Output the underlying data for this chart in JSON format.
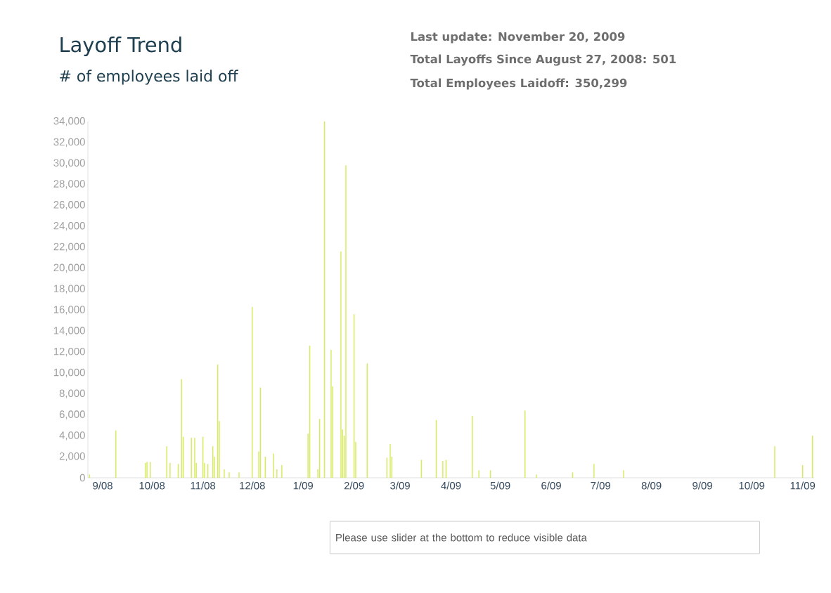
{
  "chart_data": {
    "type": "bar",
    "title": "Layoff Trend",
    "subtitle": "# of employees laid off",
    "annotations": [
      "Last update: November 20, 2009",
      "Total Layoffs Since August 27, 2008: 501",
      "Total Employees Laidoff: 350,299",
      "Please use slider at the bottom to reduce visible data"
    ],
    "x": [
      "2008-08-24",
      "2008-09-09",
      "2008-09-27",
      "2008-09-28",
      "2008-09-30",
      "2008-10-10",
      "2008-10-12",
      "2008-10-17",
      "2008-10-19",
      "2008-10-20",
      "2008-10-25",
      "2008-10-27",
      "2008-10-28",
      "2008-11-01",
      "2008-11-02",
      "2008-11-04",
      "2008-11-07",
      "2008-11-08",
      "2008-11-10",
      "2008-11-11",
      "2008-11-14",
      "2008-11-17",
      "2008-11-23",
      "2008-12-01",
      "2008-12-05",
      "2008-12-06",
      "2008-12-09",
      "2008-12-14",
      "2008-12-16",
      "2008-12-19",
      "2009-01-04",
      "2009-01-05",
      "2009-01-10",
      "2009-01-11",
      "2009-01-14",
      "2009-01-18",
      "2009-01-19",
      "2009-01-24",
      "2009-01-25",
      "2009-01-26",
      "2009-01-27",
      "2009-02-01",
      "2009-02-02",
      "2009-02-09",
      "2009-02-21",
      "2009-02-23",
      "2009-02-24",
      "2009-03-14",
      "2009-03-23",
      "2009-03-27",
      "2009-03-29",
      "2009-04-14",
      "2009-04-18",
      "2009-04-25",
      "2009-05-16",
      "2009-05-23",
      "2009-06-14",
      "2009-06-27",
      "2009-07-15",
      "2009-10-15",
      "2009-11-01",
      "2009-11-07"
    ],
    "values": [
      300,
      4500,
      1400,
      1500,
      1500,
      3000,
      1400,
      1300,
      9400,
      3900,
      3800,
      3800,
      1400,
      3900,
      1400,
      1300,
      3000,
      2000,
      10800,
      5400,
      800,
      500,
      500,
      16300,
      2500,
      8600,
      2000,
      2300,
      800,
      1200,
      4200,
      12600,
      800,
      5600,
      34000,
      12200,
      8700,
      21600,
      4600,
      4000,
      29800,
      15600,
      3400,
      10900,
      1900,
      3200,
      2000,
      1700,
      5500,
      1600,
      1700,
      5900,
      700,
      700,
      6400,
      300,
      500,
      1300,
      700,
      3000,
      1200,
      4000
    ],
    "color": "#d8ea6a",
    "xlim": [
      "2008-08-23",
      "2009-11-08"
    ],
    "xticks": [
      {
        "value": "2008-09-01",
        "label": "9/08"
      },
      {
        "value": "2008-10-01",
        "label": "10/08"
      },
      {
        "value": "2008-11-01",
        "label": "11/08"
      },
      {
        "value": "2008-12-01",
        "label": "12/08"
      },
      {
        "value": "2009-01-01",
        "label": "1/09"
      },
      {
        "value": "2009-02-01",
        "label": "2/09"
      },
      {
        "value": "2009-03-01",
        "label": "3/09"
      },
      {
        "value": "2009-04-01",
        "label": "4/09"
      },
      {
        "value": "2009-05-01",
        "label": "5/09"
      },
      {
        "value": "2009-06-01",
        "label": "6/09"
      },
      {
        "value": "2009-07-01",
        "label": "7/09"
      },
      {
        "value": "2009-08-01",
        "label": "8/09"
      },
      {
        "value": "2009-09-01",
        "label": "9/09"
      },
      {
        "value": "2009-10-01",
        "label": "10/09"
      },
      {
        "value": "2009-11-01",
        "label": "11/09"
      }
    ],
    "ylim": [
      0,
      34000
    ],
    "yticks": [
      0,
      {
        "value": 2000,
        "label": "2,000"
      },
      {
        "value": 4000,
        "label": "4,000"
      },
      {
        "value": 6000,
        "label": "6,000"
      },
      {
        "value": 8000,
        "label": "8,000"
      },
      {
        "value": 10000,
        "label": "10,000"
      },
      {
        "value": 12000,
        "label": "12,000"
      },
      {
        "value": 14000,
        "label": "14,000"
      },
      {
        "value": 16000,
        "label": "16,000"
      },
      {
        "value": 18000,
        "label": "18,000"
      },
      {
        "value": 20000,
        "label": "20,000"
      },
      {
        "value": 22000,
        "label": "22,000"
      },
      {
        "value": 24000,
        "label": "24,000"
      },
      {
        "value": 26000,
        "label": "26,000"
      },
      {
        "value": 28000,
        "label": "28,000"
      },
      {
        "value": 30000,
        "label": "30,000"
      },
      {
        "value": 32000,
        "label": "32,000"
      },
      {
        "value": 34000,
        "label": "34,000"
      }
    ],
    "line_style": "solid"
  }
}
